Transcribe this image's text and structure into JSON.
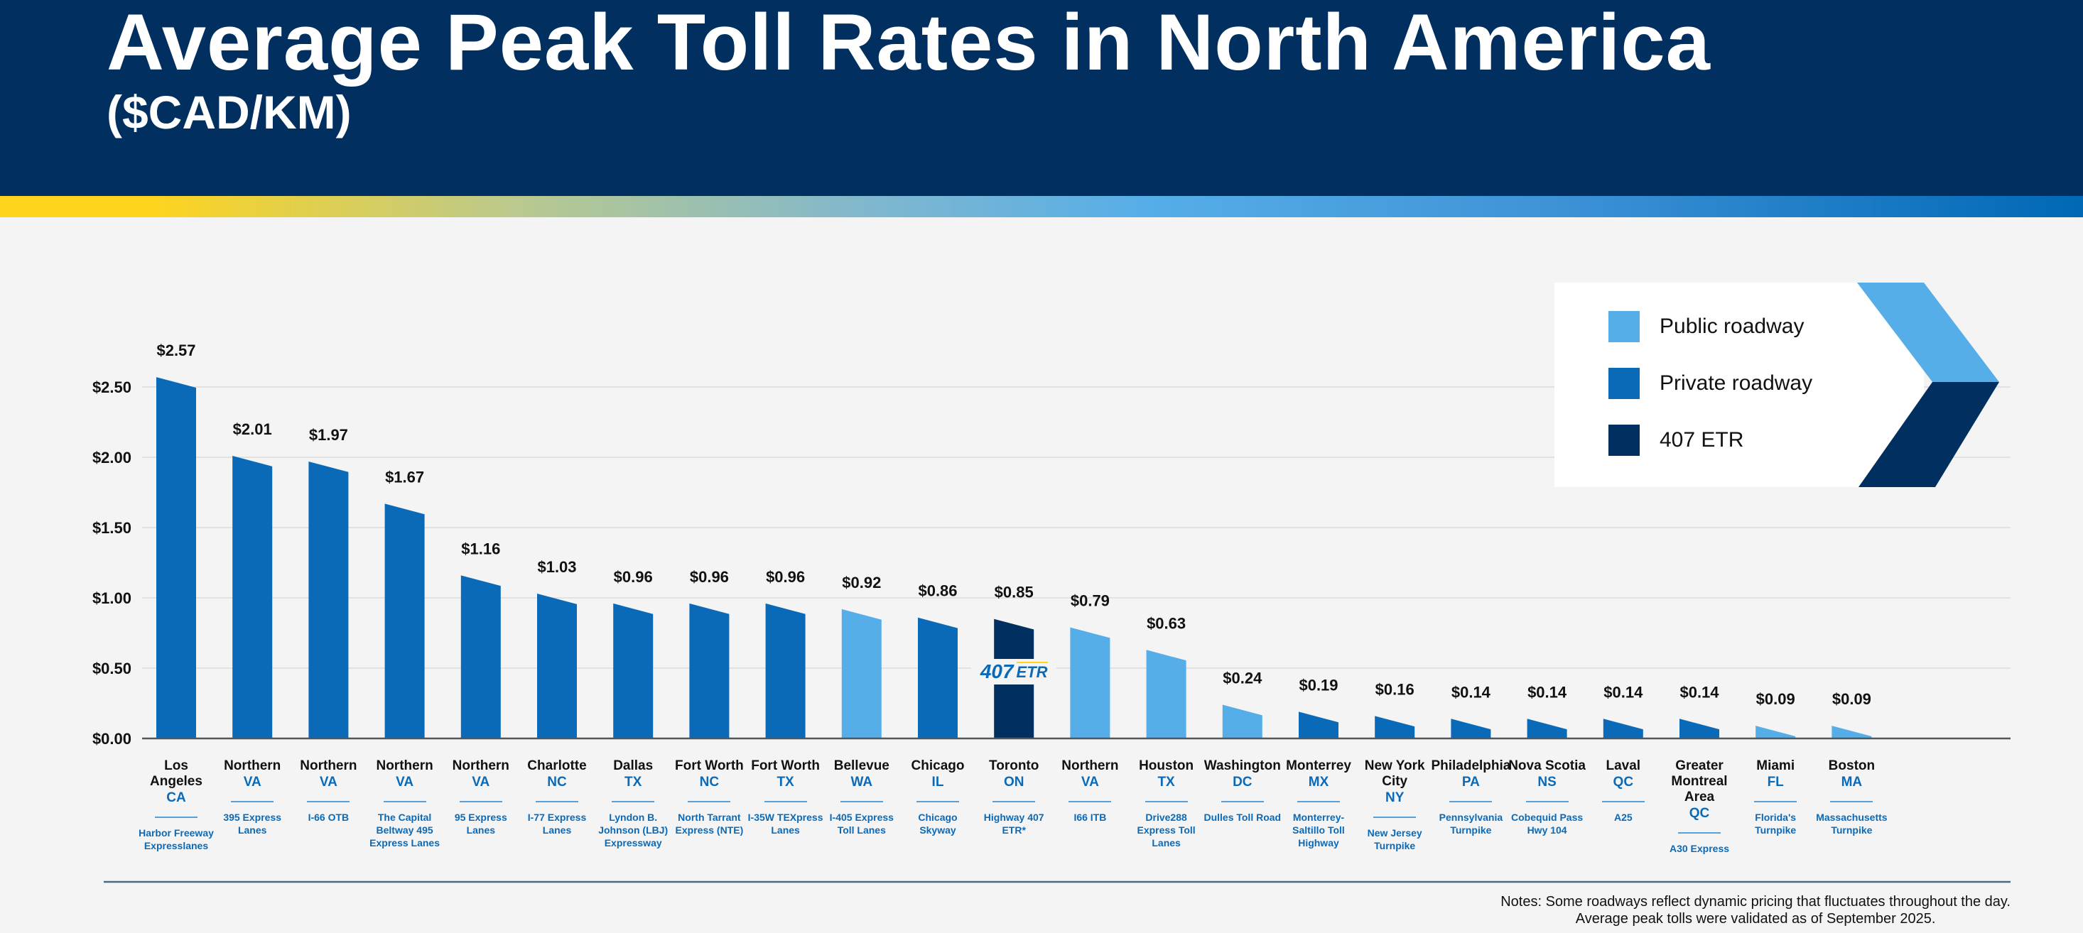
{
  "header": {
    "title": "Average Peak Toll Rates in North America",
    "subtitle": "($CAD/KM)"
  },
  "colors": {
    "header_bg": "#012f5f",
    "public": "#56aee8",
    "private": "#0a6ab8",
    "etr407": "#012f5f"
  },
  "legend": [
    {
      "label": "Public roadway",
      "type": "public"
    },
    {
      "label": "Private roadway",
      "type": "private"
    },
    {
      "label": "407 ETR",
      "type": "etr407"
    }
  ],
  "notes": {
    "line1": "Notes: Some roadways reflect dynamic pricing that fluctuates throughout the day.",
    "line2": "Average peak tolls were validated as of September 2025."
  },
  "logo_407": {
    "num": "407",
    "etr": "ETR"
  },
  "chart_data": {
    "type": "bar",
    "title": "Average Peak Toll Rates in North America",
    "ylabel": "($CAD/KM)",
    "ylim": [
      0,
      2.75
    ],
    "yticks": [
      "$0.00",
      "$0.50",
      "$1.00",
      "$1.50",
      "$2.00",
      "$2.50"
    ],
    "ytick_values": [
      0,
      0.5,
      1.0,
      1.5,
      2.0,
      2.5
    ],
    "grid": true,
    "legend_position": "top-right",
    "bars": [
      {
        "city": "Los Angeles",
        "state": "CA",
        "road": "Harbor Freeway Expresslanes",
        "value": 2.57,
        "label": "$2.57",
        "type": "private"
      },
      {
        "city": "Northern",
        "state": "VA",
        "road": "395 Express Lanes",
        "value": 2.01,
        "label": "$2.01",
        "type": "private"
      },
      {
        "city": "Northern",
        "state": "VA",
        "road": "I-66 OTB",
        "value": 1.97,
        "label": "$1.97",
        "type": "private"
      },
      {
        "city": "Northern",
        "state": "VA",
        "road": "The Capital Beltway 495 Express Lanes",
        "value": 1.67,
        "label": "$1.67",
        "type": "private"
      },
      {
        "city": "Northern",
        "state": "VA",
        "road": "95 Express Lanes",
        "value": 1.16,
        "label": "$1.16",
        "type": "private"
      },
      {
        "city": "Charlotte",
        "state": "NC",
        "road": "I-77 Express Lanes",
        "value": 1.03,
        "label": "$1.03",
        "type": "private"
      },
      {
        "city": "Dallas",
        "state": "TX",
        "road": "Lyndon B. Johnson (LBJ) Expressway",
        "value": 0.96,
        "label": "$0.96",
        "type": "private"
      },
      {
        "city": "Fort Worth",
        "state": "NC",
        "road": "North Tarrant Express (NTE)",
        "value": 0.96,
        "label": "$0.96",
        "type": "private"
      },
      {
        "city": "Fort Worth",
        "state": "TX",
        "road": "I-35W TEXpress Lanes",
        "value": 0.96,
        "label": "$0.96",
        "type": "private"
      },
      {
        "city": "Bellevue",
        "state": "WA",
        "road": "I-405 Express Toll Lanes",
        "value": 0.92,
        "label": "$0.92",
        "type": "public"
      },
      {
        "city": "Chicago",
        "state": "IL",
        "road": "Chicago Skyway",
        "value": 0.86,
        "label": "$0.86",
        "type": "private"
      },
      {
        "city": "Toronto",
        "state": "ON",
        "road": "Highway 407 ETR*",
        "value": 0.85,
        "label": "$0.85",
        "type": "etr407"
      },
      {
        "city": "Northern",
        "state": "VA",
        "road": "I66 ITB",
        "value": 0.79,
        "label": "$0.79",
        "type": "public"
      },
      {
        "city": "Houston",
        "state": "TX",
        "road": "Drive288 Express Toll Lanes",
        "value": 0.63,
        "label": "$0.63",
        "type": "public"
      },
      {
        "city": "Washington",
        "state": "DC",
        "road": "Dulles Toll Road",
        "value": 0.24,
        "label": "$0.24",
        "type": "public"
      },
      {
        "city": "Monterrey",
        "state": "MX",
        "road": "Monterrey-Saltillo Toll Highway",
        "value": 0.19,
        "label": "$0.19",
        "type": "private"
      },
      {
        "city": "New York City",
        "state": "NY",
        "road": "New Jersey Turnpike",
        "value": 0.16,
        "label": "$0.16",
        "type": "private"
      },
      {
        "city": "Philadelphia",
        "state": "PA",
        "road": "Pennsylvania Turnpike",
        "value": 0.14,
        "label": "$0.14",
        "type": "private"
      },
      {
        "city": "Nova Scotia",
        "state": "NS",
        "road": "Cobequid Pass Hwy 104",
        "value": 0.14,
        "label": "$0.14",
        "type": "private"
      },
      {
        "city": "Laval",
        "state": "QC",
        "road": "A25",
        "value": 0.14,
        "label": "$0.14",
        "type": "private"
      },
      {
        "city": "Greater Montreal Area",
        "state": "QC",
        "road": "A30 Express",
        "value": 0.14,
        "label": "$0.14",
        "type": "private"
      },
      {
        "city": "Miami",
        "state": "FL",
        "road": "Florida's Turnpike",
        "value": 0.09,
        "label": "$0.09",
        "type": "public"
      },
      {
        "city": "Boston",
        "state": "MA",
        "road": "Massachusetts Turnpike",
        "value": 0.09,
        "label": "$0.09",
        "type": "public"
      }
    ]
  }
}
